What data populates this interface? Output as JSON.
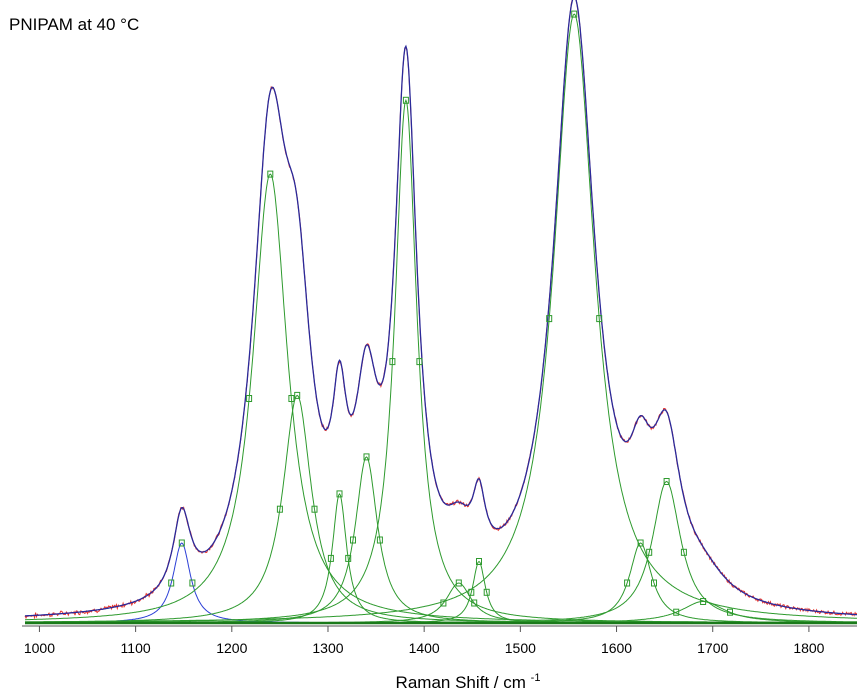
{
  "chart_data": {
    "type": "line",
    "title": "PNIPAM at 40 °C",
    "xlabel": "Raman Shift / cm",
    "xlabel_superscript": "-1",
    "ylabel": "",
    "xlim": [
      985,
      1850
    ],
    "ylim": [
      0,
      1.0
    ],
    "x_ticks": [
      1000,
      1100,
      1200,
      1300,
      1400,
      1500,
      1600,
      1700,
      1800
    ],
    "y_axis_visible": false,
    "grid": false,
    "legend": "none",
    "colors": {
      "measured": "#e8342c",
      "fit": "#2a2a9a",
      "component": "#2e9a2e",
      "blue_component": "#2c3fd6",
      "baseline": "#1a7a1a",
      "marker": "#2e9a2e"
    },
    "components": [
      {
        "center": 1148,
        "amplitude": 0.13,
        "width": 11,
        "color": "blue"
      },
      {
        "center": 1240,
        "amplitude": 0.73,
        "width": 22,
        "color": "green"
      },
      {
        "center": 1268,
        "amplitude": 0.37,
        "width": 18,
        "color": "green"
      },
      {
        "center": 1312,
        "amplitude": 0.21,
        "width": 9,
        "color": "green"
      },
      {
        "center": 1340,
        "amplitude": 0.27,
        "width": 14,
        "color": "green"
      },
      {
        "center": 1381,
        "amplitude": 0.85,
        "width": 14,
        "color": "green"
      },
      {
        "center": 1436,
        "amplitude": 0.065,
        "width": 16,
        "color": "green"
      },
      {
        "center": 1457,
        "amplitude": 0.1,
        "width": 8,
        "color": "green"
      },
      {
        "center": 1556,
        "amplitude": 0.99,
        "width": 26,
        "color": "green"
      },
      {
        "center": 1625,
        "amplitude": 0.13,
        "width": 14,
        "color": "green"
      },
      {
        "center": 1652,
        "amplitude": 0.23,
        "width": 18,
        "color": "green"
      },
      {
        "center": 1690,
        "amplitude": 0.035,
        "width": 28,
        "color": "green"
      }
    ],
    "peaks_observed": [
      {
        "x": 1148,
        "y": 0.18
      },
      {
        "x": 1243,
        "y": 0.86
      },
      {
        "x": 1312,
        "y": 0.42
      },
      {
        "x": 1345,
        "y": 0.38
      },
      {
        "x": 1380,
        "y": 0.91
      },
      {
        "x": 1456,
        "y": 0.2
      },
      {
        "x": 1556,
        "y": 1.0
      },
      {
        "x": 1646,
        "y": 0.33
      }
    ]
  }
}
